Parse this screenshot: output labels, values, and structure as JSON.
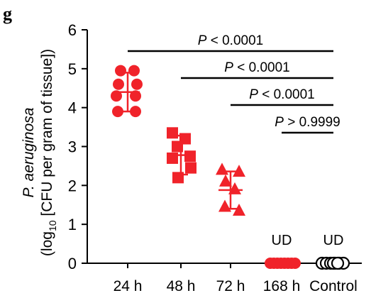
{
  "panel_letter": "g",
  "chart_data": {
    "type": "scatter",
    "ylabel_italic": "P. aeruginosa",
    "ylabel_prefix": "(log",
    "ylabel_subscript": "10",
    "ylabel_suffix": " [CFU per gram of tissue])",
    "ylim": [
      0,
      6
    ],
    "yticks": [
      0,
      1,
      2,
      3,
      4,
      5,
      6
    ],
    "categories": [
      "24 h",
      "48 h",
      "72 h",
      "168 h",
      "Control"
    ],
    "groups": [
      {
        "category": "24 h",
        "marker": "circle",
        "filled": true,
        "color": "#f0232a",
        "points": [
          4.95,
          4.95,
          4.6,
          4.6,
          4.3,
          4.3,
          3.9,
          3.9
        ],
        "mean": 4.4,
        "error": [
          3.9,
          4.9
        ],
        "note": ""
      },
      {
        "category": "48 h",
        "marker": "square",
        "filled": true,
        "color": "#f0232a",
        "points": [
          3.35,
          3.2,
          3.0,
          2.75,
          2.7,
          2.45,
          2.2
        ],
        "mean": 2.78,
        "error": [
          2.28,
          3.28
        ],
        "note": ""
      },
      {
        "category": "72 h",
        "marker": "triangle",
        "filled": true,
        "color": "#f0232a",
        "points": [
          2.4,
          2.35,
          2.1,
          1.9,
          1.45,
          1.35
        ],
        "mean": 1.88,
        "error": [
          1.4,
          2.36
        ],
        "note": ""
      },
      {
        "category": "168 h",
        "marker": "circle",
        "filled": true,
        "color": "#f0232a",
        "points": [
          0,
          0,
          0,
          0,
          0,
          0,
          0,
          0
        ],
        "mean": 0,
        "error": null,
        "note": "UD"
      },
      {
        "category": "Control",
        "marker": "circle",
        "filled": false,
        "color": "#000000",
        "points": [
          0,
          0,
          0,
          0,
          0,
          0,
          0,
          0
        ],
        "mean": 0,
        "error": null,
        "note": "UD"
      }
    ],
    "comparisons": [
      {
        "from": "24 h",
        "to": "Control",
        "label_italic": "P",
        "label_rest": " < 0.0001"
      },
      {
        "from": "48 h",
        "to": "Control",
        "label_italic": "P",
        "label_rest": " < 0.0001"
      },
      {
        "from": "72 h",
        "to": "Control",
        "label_italic": "P",
        "label_rest": " < 0.0001"
      },
      {
        "from": "168 h",
        "to": "Control",
        "label_italic": "P",
        "label_rest": " > 0.9999"
      }
    ]
  }
}
